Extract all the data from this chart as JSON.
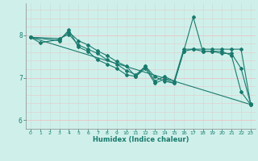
{
  "xlabel": "Humidex (Indice chaleur)",
  "bg_color": "#cff0ea",
  "grid_color_h": "#e8c8c8",
  "grid_color_v": "#c8e0dc",
  "line_color": "#1a7a6e",
  "xlim": [
    -0.5,
    23.5
  ],
  "ylim": [
    5.8,
    8.75
  ],
  "yticks": [
    6,
    7,
    8
  ],
  "xticks": [
    0,
    1,
    2,
    3,
    4,
    5,
    6,
    7,
    8,
    9,
    10,
    11,
    12,
    13,
    14,
    15,
    16,
    17,
    18,
    19,
    20,
    21,
    22,
    23
  ],
  "series1_x": [
    0,
    1,
    3,
    4,
    5,
    6,
    7,
    8,
    9,
    10,
    11,
    12,
    13,
    14,
    15,
    16,
    17,
    18,
    19,
    20,
    21,
    22,
    23
  ],
  "series1_y": [
    7.95,
    7.82,
    7.9,
    8.07,
    7.87,
    7.77,
    7.63,
    7.52,
    7.38,
    7.27,
    7.03,
    7.27,
    6.92,
    7.03,
    6.92,
    7.67,
    7.67,
    7.67,
    7.67,
    7.67,
    7.67,
    7.67,
    6.38
  ],
  "series2_x": [
    0,
    3,
    4,
    5,
    6,
    7,
    8,
    9,
    10,
    11,
    12,
    13,
    14,
    15,
    16,
    17,
    18,
    19,
    20,
    21,
    22,
    23
  ],
  "series2_y": [
    7.95,
    7.87,
    8.12,
    7.72,
    7.62,
    7.42,
    7.32,
    7.22,
    7.07,
    7.03,
    7.22,
    6.87,
    6.97,
    6.87,
    7.62,
    8.42,
    7.62,
    7.62,
    7.62,
    7.52,
    6.67,
    6.37
  ],
  "series3_x": [
    0,
    3,
    4,
    5,
    6,
    7,
    8,
    9,
    10,
    11,
    12,
    13,
    14,
    15,
    16,
    17,
    18,
    19,
    20,
    21,
    22,
    23
  ],
  "series3_y": [
    7.95,
    7.92,
    8.02,
    7.77,
    7.67,
    7.57,
    7.42,
    7.32,
    7.17,
    7.07,
    7.27,
    7.02,
    6.92,
    6.87,
    7.62,
    7.67,
    7.62,
    7.62,
    7.57,
    7.57,
    7.22,
    6.38
  ],
  "series4_x": [
    0,
    23
  ],
  "series4_y": [
    7.95,
    6.37
  ],
  "lw": 0.8,
  "ms": 2.0
}
